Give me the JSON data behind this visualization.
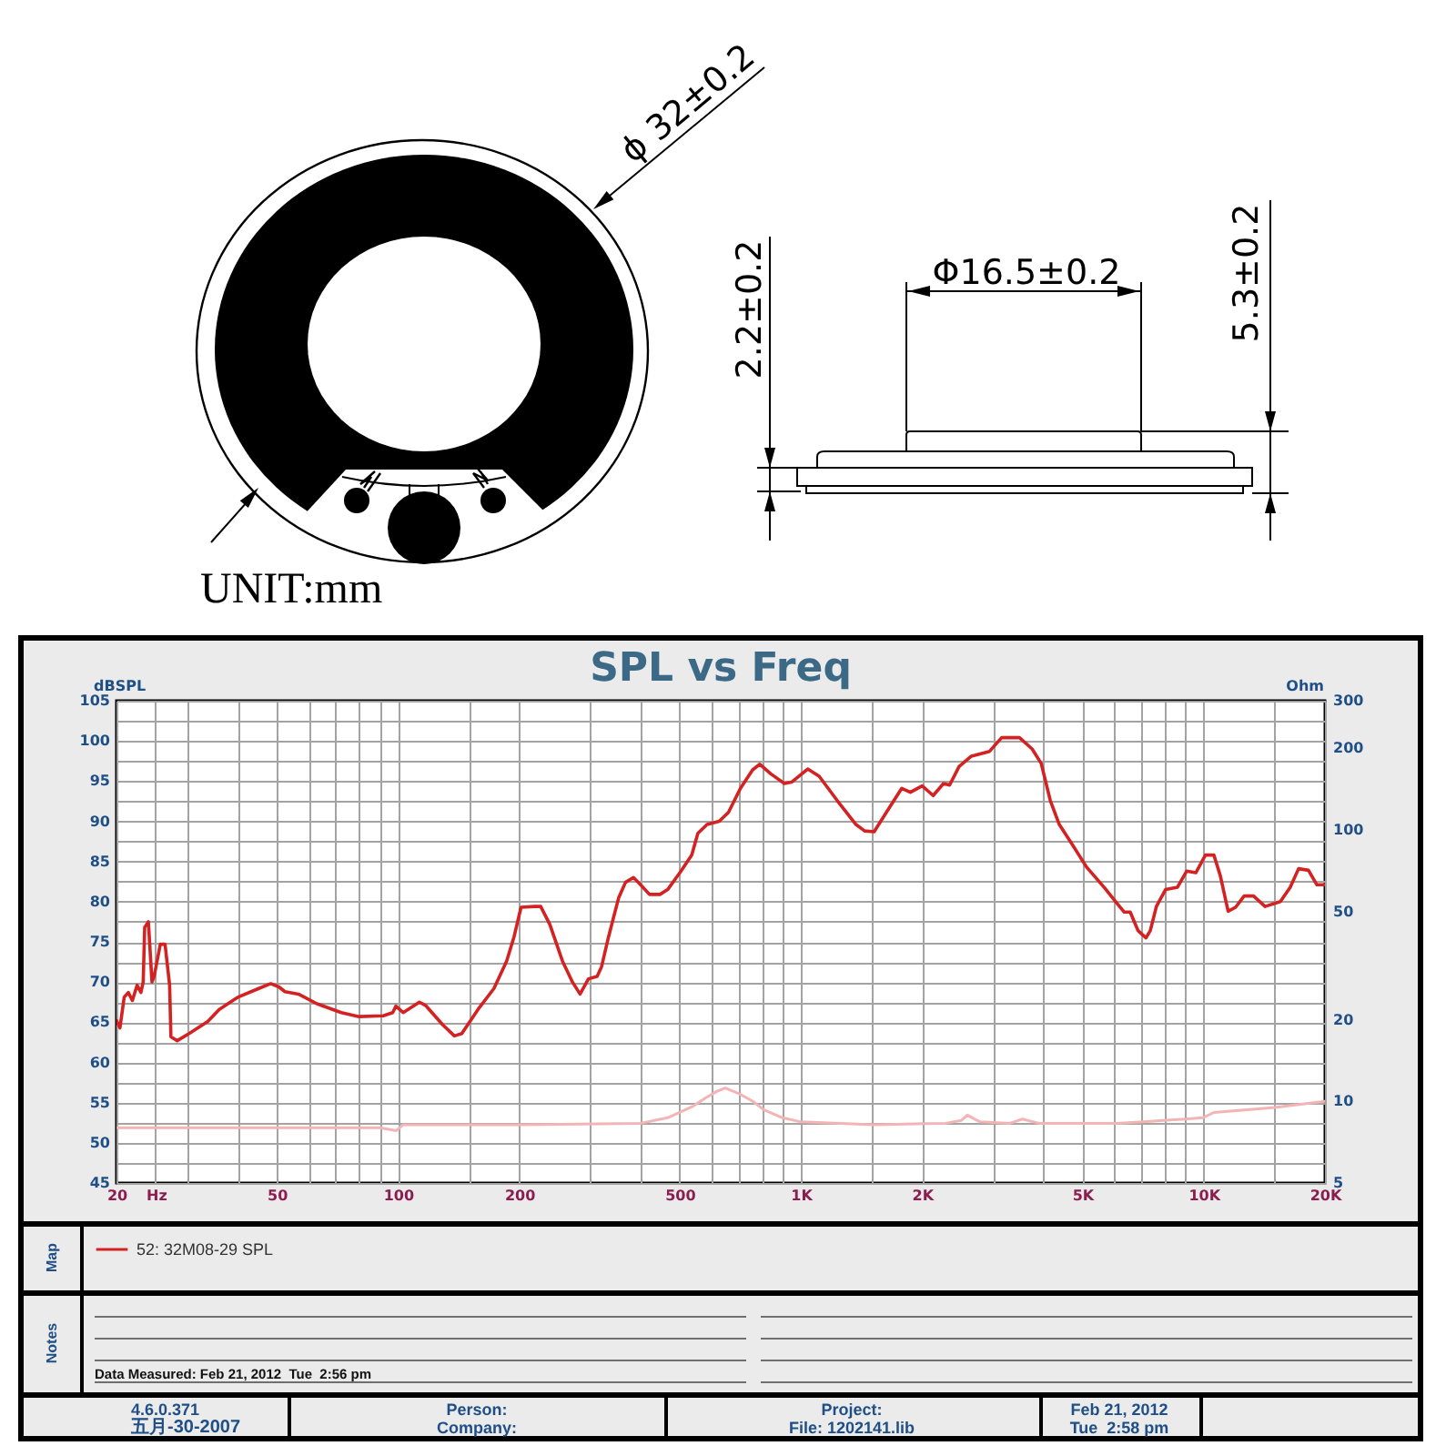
{
  "chart_data": [
    {
      "type": "line",
      "title": "SPL vs Freq",
      "xlabel": "Hz",
      "ylabel": "dBSPL",
      "annotations": [
        "ϕ 32±0.2",
        "UNIT:mm",
        "2.2±0.2",
        "Φ16.5±0.2",
        "5.3±0.2",
        "Map",
        "Notes",
        "Data Measured: Feb 21, 2012  Tue  2:56 pm",
        "4.6.0.371",
        "五月-30-2007",
        "Person:",
        "Company:",
        "Project:",
        "File: 1202141.lib",
        "Feb 21, 2012",
        "Tue  2:58 pm"
      ],
      "xlim": [
        20,
        20000
      ],
      "xticks": [
        20,
        {
          "value": 25,
          "label": null
        },
        {
          "value": 30,
          "label": null
        },
        {
          "value": 40,
          "label": null
        },
        50,
        {
          "value": 60,
          "label": null
        },
        {
          "value": 70,
          "label": null
        },
        {
          "value": 80,
          "label": null
        },
        {
          "value": 90,
          "label": null
        },
        100,
        {
          "value": 150,
          "label": null
        },
        200,
        {
          "value": 300,
          "label": null
        },
        {
          "value": 400,
          "label": null
        },
        500,
        {
          "value": 600,
          "label": null
        },
        {
          "value": 700,
          "label": null
        },
        {
          "value": 800,
          "label": null
        },
        {
          "value": 900,
          "label": null
        },
        {
          "value": 1000,
          "label": "1K"
        },
        {
          "value": 1500,
          "label": null
        },
        {
          "value": 2000,
          "label": "2K"
        },
        {
          "value": 3000,
          "label": null
        },
        {
          "value": 4000,
          "label": null
        },
        {
          "value": 5000,
          "label": "5K"
        },
        {
          "value": 6000,
          "label": null
        },
        {
          "value": 7000,
          "label": null
        },
        {
          "value": 8000,
          "label": null
        },
        {
          "value": 9000,
          "label": null
        },
        {
          "value": 10000,
          "label": "10K"
        },
        {
          "value": 15000,
          "label": null
        },
        {
          "value": 20000,
          "label": "20K"
        }
      ],
      "ylim": [
        45,
        105
      ],
      "yticks": [
        45,
        {
          "value": 47.5,
          "label": null
        },
        50,
        {
          "value": 52.5,
          "label": null
        },
        55,
        {
          "value": 57.5,
          "label": null
        },
        60,
        {
          "value": 62.5,
          "label": null
        },
        65,
        {
          "value": 67.5,
          "label": null
        },
        70,
        {
          "value": 72.5,
          "label": null
        },
        75,
        {
          "value": 77.5,
          "label": null
        },
        80,
        {
          "value": 82.5,
          "label": null
        },
        85,
        {
          "value": 87.5,
          "label": null
        },
        90,
        {
          "value": 92.5,
          "label": null
        },
        95,
        {
          "value": 97.5,
          "label": null
        },
        100,
        {
          "value": 102.5,
          "label": null
        },
        105
      ],
      "log": "x",
      "grid": true,
      "legend": "bottom left",
      "series": [
        {
          "name": "52: 32M08-29 SPL",
          "color": "#d42222",
          "x": [
            20,
            20.4,
            20.9,
            21.4,
            21.9,
            22.5,
            23.0,
            23.3,
            23.5,
            24.0,
            24.5,
            24.8,
            25.7,
            26.4,
            27.1,
            27.3,
            28.3,
            30.3,
            33.7,
            36.0,
            40.0,
            45.1,
            48.3,
            50.6,
            52.4,
            56.6,
            62.9,
            72.3,
            80.0,
            91.9,
            97.0,
            98.8,
            103,
            113,
            117,
            129,
            138,
            144,
            158,
            173,
            186,
            194,
            202,
            218,
            226,
            238,
            256,
            271,
            283,
            297,
            312,
            320,
            333,
            353,
            367,
            384,
            400,
            421,
            447,
            467,
            504,
            536,
            555,
            585,
            627,
            661,
            708,
            759,
            791,
            842,
            910,
            951,
            1040,
            1110,
            1230,
            1370,
            1440,
            1520,
            1630,
            1780,
            1870,
            2000,
            2130,
            2260,
            2340,
            2470,
            2650,
            2940,
            3150,
            3490,
            3750,
            3950,
            4160,
            4380,
            4690,
            5120,
            5680,
            6090,
            6350,
            6570,
            6870,
            7190,
            7370,
            7630,
            8040,
            8610,
            9070,
            9560,
            10100,
            10600,
            11000,
            11500,
            12000,
            12600,
            13300,
            14200,
            15500,
            16400,
            17200,
            18200,
            19100,
            20000
          ],
          "values": [
            65.2,
            64.3,
            68.1,
            68.7,
            67.7,
            69.6,
            68.7,
            70.0,
            76.8,
            77.5,
            70.0,
            70.7,
            74.7,
            74.7,
            69.6,
            63.2,
            62.7,
            63.6,
            65.1,
            66.6,
            68.1,
            69.2,
            69.8,
            69.4,
            68.8,
            68.5,
            67.3,
            66.2,
            65.7,
            65.8,
            66.2,
            67.0,
            66.2,
            67.5,
            67.1,
            64.7,
            63.3,
            63.6,
            66.6,
            69.2,
            72.6,
            75.6,
            79.3,
            79.4,
            79.4,
            77.2,
            72.6,
            70.0,
            68.5,
            70.4,
            70.7,
            71.9,
            75.6,
            80.5,
            82.4,
            83.0,
            82.1,
            80.9,
            80.9,
            81.5,
            83.8,
            85.8,
            88.5,
            89.6,
            90.0,
            91.1,
            94.1,
            96.4,
            97.1,
            95.9,
            94.7,
            94.9,
            96.5,
            95.6,
            92.6,
            89.6,
            88.8,
            88.7,
            91.1,
            94.1,
            93.6,
            94.4,
            93.2,
            94.7,
            94.5,
            96.8,
            98.1,
            98.7,
            100.4,
            100.4,
            99.0,
            97.2,
            92.6,
            89.6,
            87.3,
            84.3,
            81.7,
            79.8,
            78.7,
            78.7,
            76.4,
            75.5,
            76.4,
            79.4,
            81.5,
            81.8,
            83.8,
            83.6,
            85.8,
            85.8,
            83.2,
            78.8,
            79.3,
            80.7,
            80.7,
            79.4,
            80.0,
            81.8,
            84.1,
            83.9,
            82.1,
            82.1
          ]
        }
      ]
    },
    {
      "type": "line",
      "ylabel": "Ohm",
      "xlim": [
        20,
        20000
      ],
      "ylim": [
        5,
        300
      ],
      "yticks": [
        5,
        10,
        20,
        50,
        100,
        200,
        300
      ],
      "log": "xy",
      "tick_labels": "y",
      "series": [
        {
          "color": "#f2b4b4",
          "x": [
            20,
            50,
            90,
            99,
            103,
            200,
            400,
            467,
            540,
            580,
            620,
            649,
            700,
            760,
            810,
            900,
            1000,
            1520,
            2290,
            2500,
            2590,
            2700,
            2790,
            3300,
            3550,
            3900,
            6090,
            9000,
            9950,
            10600,
            15000,
            20000
          ],
          "values": [
            8.0,
            8.0,
            8.0,
            7.8,
            8.2,
            8.2,
            8.3,
            8.7,
            9.6,
            10.3,
            10.9,
            11.2,
            10.7,
            10.0,
            9.3,
            8.7,
            8.4,
            8.2,
            8.3,
            8.5,
            8.9,
            8.6,
            8.4,
            8.3,
            8.6,
            8.3,
            8.3,
            8.6,
            8.7,
            9.1,
            9.5,
            10.0
          ]
        }
      ]
    }
  ]
}
